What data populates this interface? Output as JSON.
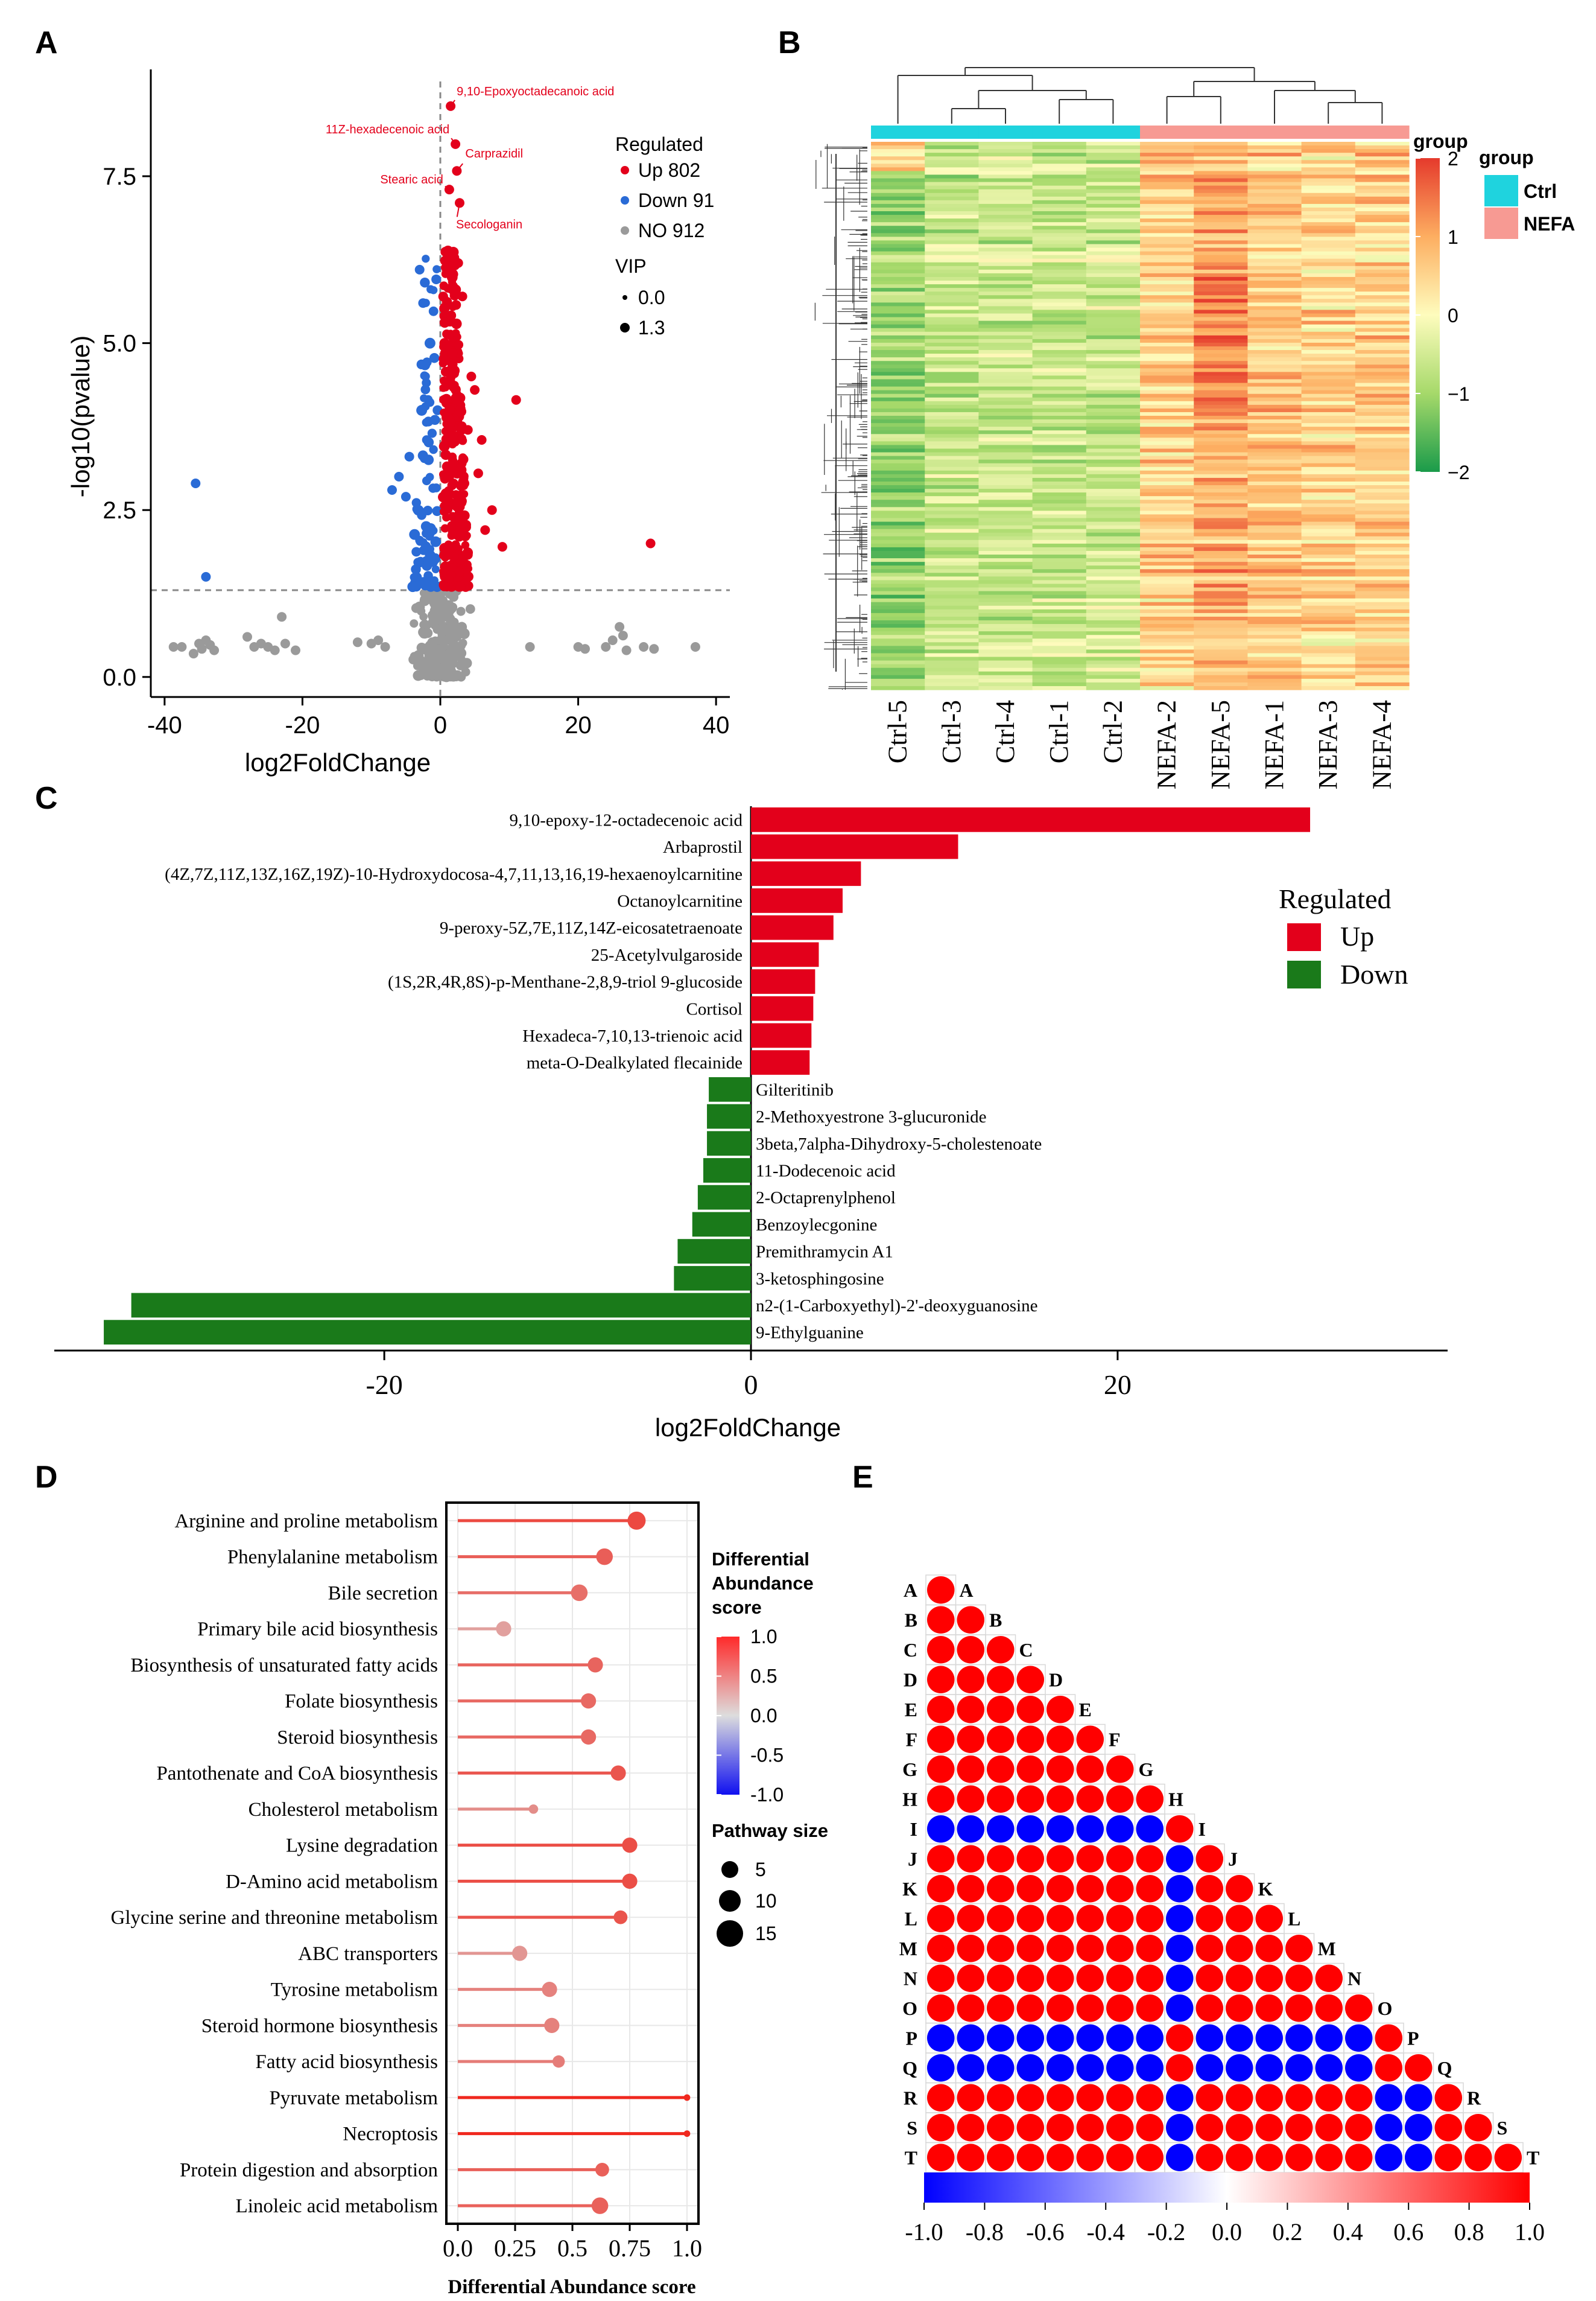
{
  "panels": {
    "a": "A",
    "b": "B",
    "c": "C",
    "d": "D",
    "e": "E"
  },
  "chart_data": [
    {
      "id": "A",
      "type": "scatter",
      "xlabel": "log2FoldChange",
      "ylabel": "-log10(pvalue)",
      "xlim": [
        -42,
        42
      ],
      "ylim": [
        -0.3,
        9.1
      ],
      "xticks": [
        "-40",
        "-20",
        "0",
        "20",
        "40"
      ],
      "yticks": [
        "0.0",
        "2.5",
        "5.0",
        "7.5"
      ],
      "threshold_y": 1.3,
      "legend": {
        "title": "Regulated",
        "items": [
          {
            "label": "Up 802",
            "color": "#e3001b"
          },
          {
            "label": "Down 91",
            "color": "#2a6bd6"
          },
          {
            "label": "NO 912",
            "color": "#9a9a9a"
          }
        ],
        "size_title": "VIP",
        "size_items": [
          "0.0",
          "1.3"
        ]
      },
      "annotations": [
        {
          "label": "9,10-Epoxyoctadecanoic acid",
          "x": 1.5,
          "y": 8.55
        },
        {
          "label": "11Z-hexadecenoic acid",
          "x": 2.2,
          "y": 7.98
        },
        {
          "label": "Carprazidil",
          "x": 2.4,
          "y": 7.58
        },
        {
          "label": "Stearic acid",
          "x": 1.3,
          "y": 7.3
        },
        {
          "label": "Secologanin",
          "x": 2.8,
          "y": 7.1
        }
      ],
      "series": [
        {
          "name": "Up",
          "color": "#e3001b",
          "points": [
            [
              1.5,
              8.55
            ],
            [
              2.2,
              7.98
            ],
            [
              2.4,
              7.58
            ],
            [
              1.3,
              7.3
            ],
            [
              2.8,
              7.1
            ],
            [
              11,
              4.15
            ],
            [
              6,
              3.55
            ],
            [
              5.5,
              3.05
            ],
            [
              30.5,
              2.0
            ],
            [
              9,
              1.95
            ],
            [
              7.5,
              2.5
            ],
            [
              5,
              4.3
            ],
            [
              4.5,
              4.5
            ],
            [
              3.2,
              5.7
            ],
            [
              2.6,
              6.2
            ],
            [
              4,
              3.7
            ],
            [
              6.5,
              2.2
            ],
            [
              3.5,
              2.9
            ]
          ],
          "band": {
            "x_min": 0.4,
            "x_max": 4.2,
            "y_min": 1.35,
            "y_max": 6.4,
            "count": 330
          }
        },
        {
          "name": "Down",
          "color": "#2a6bd6",
          "points": [
            [
              -35.5,
              2.9
            ],
            [
              -34,
              1.5
            ],
            [
              -6,
              3.0
            ],
            [
              -4.5,
              3.3
            ],
            [
              -5,
              2.7
            ],
            [
              -3,
              6.1
            ],
            [
              -2.5,
              5.6
            ],
            [
              -7,
              2.8
            ]
          ],
          "band": {
            "x_min": -4.2,
            "x_max": -0.4,
            "y_min": 1.35,
            "y_max": 6.4,
            "count": 85
          }
        },
        {
          "name": "NO",
          "color": "#9a9a9a",
          "points": [
            [
              -35,
              0.5
            ],
            [
              -34.6,
              0.42
            ],
            [
              -34,
              0.55
            ],
            [
              -33.4,
              0.48
            ],
            [
              -32.8,
              0.4
            ],
            [
              -35.8,
              0.35
            ],
            [
              -37.5,
              0.45
            ],
            [
              -28,
              0.6
            ],
            [
              -27,
              0.45
            ],
            [
              -26,
              0.5
            ],
            [
              -25,
              0.45
            ],
            [
              -24,
              0.4
            ],
            [
              -23,
              0.9
            ],
            [
              -22.5,
              0.5
            ],
            [
              -21,
              0.4
            ],
            [
              -38.7,
              0.45
            ],
            [
              -12,
              0.52
            ],
            [
              -10,
              0.5
            ],
            [
              -9,
              0.55
            ],
            [
              -8,
              0.45
            ],
            [
              13,
              0.45
            ],
            [
              20,
              0.45
            ],
            [
              21,
              0.42
            ],
            [
              24,
              0.45
            ],
            [
              25,
              0.55
            ],
            [
              26,
              0.75
            ],
            [
              26.5,
              0.62
            ],
            [
              27,
              0.4
            ],
            [
              29.5,
              0.45
            ],
            [
              37,
              0.45
            ],
            [
              31,
              0.42
            ]
          ],
          "band": {
            "x_min": -5,
            "x_max": 5,
            "y_min": 0.0,
            "y_max": 1.3,
            "count": 260
          }
        }
      ]
    },
    {
      "id": "B",
      "type": "heatmap",
      "columns": [
        "Ctrl-5",
        "Ctrl-3",
        "Ctrl-4",
        "Ctrl-1",
        "Ctrl-2",
        "NEFA-2",
        "NEFA-5",
        "NEFA-1",
        "NEFA-3",
        "NEFA-4"
      ],
      "column_groups": [
        "Ctrl",
        "Ctrl",
        "Ctrl",
        "Ctrl",
        "Ctrl",
        "NEFA",
        "NEFA",
        "NEFA",
        "NEFA",
        "NEFA"
      ],
      "rows_shown": 150,
      "group_legend_title": "group",
      "group_legend": [
        {
          "label": "Ctrl",
          "color": "#1fd3de"
        },
        {
          "label": "NEFA",
          "color": "#f79a93"
        }
      ],
      "color_title": "group",
      "color_range": [
        -2,
        2
      ],
      "color_ticks": [
        "2",
        "1",
        "0",
        "−1",
        "−2"
      ],
      "color_stops": [
        "#1a9b4a",
        "#a6d96a",
        "#fefcbd",
        "#fdae61",
        "#e53a2c"
      ],
      "column_means": [
        -1.05,
        -0.6,
        -0.6,
        -0.55,
        -0.55,
        0.55,
        0.95,
        0.65,
        0.5,
        0.55
      ]
    },
    {
      "id": "C",
      "type": "bar",
      "orientation": "horizontal",
      "xlabel": "log2FoldChange",
      "xlim": [
        -38,
        38
      ],
      "xticks": [
        -20,
        0,
        20
      ],
      "xtick_labels": [
        "-20",
        "0",
        "20"
      ],
      "legend": {
        "title": "Regulated",
        "items": [
          {
            "label": "Up",
            "color": "#e3001b"
          },
          {
            "label": "Down",
            "color": "#1a7a1a"
          }
        ]
      },
      "categories": [
        "9,10-epoxy-12-octadecenoic acid",
        "Arbaprostil",
        "(4Z,7Z,11Z,13Z,16Z,19Z)-10-Hydroxydocosa-4,7,11,13,16,19-hexaenoylcarnitine",
        "Octanoylcarnitine",
        "9-peroxy-5Z,7E,11Z,14Z-eicosatetraenoate",
        "25-Acetylvulgaroside",
        "(1S,2R,4R,8S)-p-Menthane-2,8,9-triol 9-glucoside",
        "Cortisol",
        "Hexadeca-7,10,13-trienoic acid",
        "meta-O-Dealkylated flecainide",
        "Gilteritinib",
        "2-Methoxyestrone 3-glucuronide",
        "3beta,7alpha-Dihydroxy-5-cholestenoate",
        "11-Dodecenoic acid",
        "2-Octaprenylphenol",
        "Benzoylecgonine",
        "Premithramycin A1",
        "3-ketosphingosine",
        "n2-(1-Carboxyethyl)-2'-deoxyguanosine",
        "9-Ethylguanine"
      ],
      "values": [
        30.5,
        11.3,
        6.0,
        5.0,
        4.5,
        3.7,
        3.5,
        3.4,
        3.3,
        3.2,
        -2.3,
        -2.4,
        -2.4,
        -2.6,
        -2.9,
        -3.2,
        -4.0,
        -4.2,
        -33.8,
        -35.3
      ]
    },
    {
      "id": "D",
      "type": "lollipop",
      "xlabel": "Differential Abundance score",
      "xlim": [
        -0.05,
        1.05
      ],
      "xticks": [
        "0.0",
        "0.25",
        "0.5",
        "0.75",
        "1.0"
      ],
      "color_title": "Differential\nAbundance\nscore",
      "color_ticks": [
        "1.0",
        "0.5",
        "0.0",
        "-0.5",
        "-1.0"
      ],
      "size_title": "Pathway size",
      "size_items": [
        "5",
        "10",
        "15"
      ],
      "categories": [
        "Arginine and proline metabolism",
        "Phenylalanine metabolism",
        "Bile secretion",
        "Primary bile acid biosynthesis",
        "Biosynthesis of unsaturated fatty acids",
        "Folate biosynthesis",
        "Steroid biosynthesis",
        "Pantothenate and CoA biosynthesis",
        "Cholesterol metabolism",
        "Lysine degradation",
        "D-Amino acid metabolism",
        "Glycine serine and threonine metabolism",
        "ABC transporters",
        "Tyrosine metabolism",
        "Steroid hormone biosynthesis",
        "Fatty acid biosynthesis",
        "Pyruvate metabolism",
        "Necroptosis",
        "Protein digestion and absorption",
        "Linoleic acid metabolism"
      ],
      "values": [
        0.78,
        0.64,
        0.53,
        0.2,
        0.6,
        0.57,
        0.57,
        0.7,
        0.33,
        0.75,
        0.75,
        0.71,
        0.27,
        0.4,
        0.41,
        0.44,
        1.0,
        1.0,
        0.63,
        0.62
      ],
      "sizes": [
        10,
        9,
        9,
        8,
        8,
        8,
        8,
        8,
        4,
        8,
        8,
        7,
        8,
        8,
        8,
        6,
        2,
        2,
        7,
        9
      ]
    },
    {
      "id": "E",
      "type": "heatmap",
      "subtype": "correlation-lower-triangle",
      "labels": [
        "A",
        "B",
        "C",
        "D",
        "E",
        "F",
        "G",
        "H",
        "I",
        "J",
        "K",
        "L",
        "M",
        "N",
        "O",
        "P",
        "Q",
        "R",
        "S",
        "T"
      ],
      "negatively_correlated_groups": [
        [
          "I",
          "P",
          "Q"
        ]
      ],
      "values_note": "red = +1, blue = -1",
      "color_range": [
        -1,
        1
      ],
      "color_ticks": [
        "-1.0",
        "-0.8",
        "-0.6",
        "-0.4",
        "-0.2",
        "0.0",
        "0.2",
        "0.4",
        "0.6",
        "0.8",
        "1.0"
      ]
    }
  ]
}
